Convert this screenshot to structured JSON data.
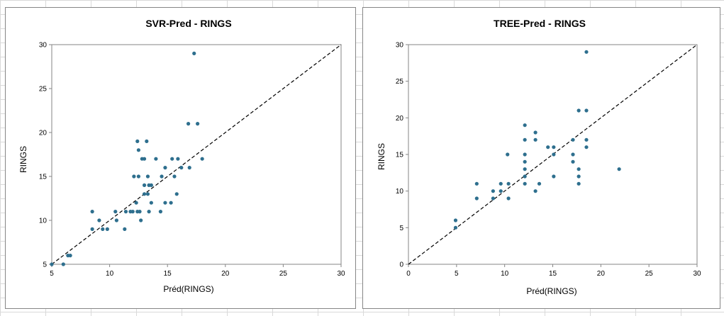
{
  "charts": {
    "svr": {
      "title": "SVR-Pred - RINGS",
      "xlabel": "Préd(RINGS)",
      "ylabel": "RINGS",
      "xticks": [
        "5",
        "10",
        "15",
        "20",
        "25",
        "30"
      ],
      "yticks": [
        "5",
        "10",
        "15",
        "20",
        "25",
        "30"
      ]
    },
    "tree": {
      "title": "TREE-Pred - RINGS",
      "xlabel": "Préd(RINGS)",
      "ylabel": "RINGS",
      "xticks": [
        "0",
        "5",
        "10",
        "15",
        "20",
        "25",
        "30"
      ],
      "yticks": [
        "0",
        "5",
        "10",
        "15",
        "20",
        "25",
        "30"
      ]
    }
  },
  "point_color": "#2e6f8e",
  "chart_data": [
    {
      "type": "scatter",
      "title": "SVR-Pred - RINGS",
      "xlabel": "Préd(RINGS)",
      "ylabel": "RINGS",
      "xlim": [
        5,
        30
      ],
      "ylim": [
        5,
        30
      ],
      "grid": false,
      "reference_line": "y = x (dashed)",
      "points": [
        [
          5.0,
          5
        ],
        [
          6.0,
          5
        ],
        [
          6.4,
          6
        ],
        [
          6.6,
          6
        ],
        [
          8.5,
          11
        ],
        [
          8.5,
          9
        ],
        [
          9.1,
          10
        ],
        [
          9.4,
          9
        ],
        [
          9.8,
          9
        ],
        [
          10.5,
          11
        ],
        [
          10.6,
          10
        ],
        [
          11.3,
          9
        ],
        [
          11.4,
          11
        ],
        [
          11.8,
          11
        ],
        [
          12.0,
          11
        ],
        [
          12.1,
          15
        ],
        [
          12.3,
          12
        ],
        [
          12.4,
          19
        ],
        [
          12.4,
          11
        ],
        [
          12.5,
          18
        ],
        [
          12.5,
          15
        ],
        [
          12.6,
          11
        ],
        [
          12.7,
          10
        ],
        [
          12.8,
          17
        ],
        [
          13.0,
          17
        ],
        [
          13.0,
          14
        ],
        [
          13.0,
          13
        ],
        [
          13.2,
          19
        ],
        [
          13.3,
          15
        ],
        [
          13.3,
          13
        ],
        [
          13.4,
          14
        ],
        [
          13.4,
          11
        ],
        [
          13.6,
          14
        ],
        [
          13.6,
          12
        ],
        [
          14.0,
          17
        ],
        [
          14.4,
          11
        ],
        [
          14.5,
          15
        ],
        [
          14.8,
          16
        ],
        [
          14.8,
          12
        ],
        [
          15.3,
          12
        ],
        [
          15.4,
          17
        ],
        [
          15.6,
          15
        ],
        [
          15.8,
          13
        ],
        [
          15.9,
          17
        ],
        [
          16.2,
          16
        ],
        [
          16.8,
          21
        ],
        [
          16.9,
          16
        ],
        [
          17.3,
          29
        ],
        [
          17.6,
          21
        ],
        [
          18.0,
          17
        ]
      ]
    },
    {
      "type": "scatter",
      "title": "TREE-Pred - RINGS",
      "xlabel": "Préd(RINGS)",
      "ylabel": "RINGS",
      "xlim": [
        0,
        30
      ],
      "ylim": [
        0,
        30
      ],
      "grid": false,
      "reference_line": "y = x (dashed)",
      "points": [
        [
          4.9,
          6
        ],
        [
          4.9,
          5
        ],
        [
          7.1,
          11
        ],
        [
          7.1,
          9
        ],
        [
          8.8,
          10
        ],
        [
          8.8,
          9
        ],
        [
          9.6,
          11
        ],
        [
          9.6,
          10
        ],
        [
          10.3,
          15
        ],
        [
          10.4,
          11
        ],
        [
          10.4,
          9
        ],
        [
          12.1,
          19
        ],
        [
          12.1,
          17
        ],
        [
          12.1,
          15
        ],
        [
          12.1,
          14
        ],
        [
          12.1,
          13
        ],
        [
          12.1,
          12
        ],
        [
          12.1,
          11
        ],
        [
          13.2,
          18
        ],
        [
          13.2,
          17
        ],
        [
          13.2,
          10
        ],
        [
          13.6,
          11
        ],
        [
          14.5,
          16
        ],
        [
          15.1,
          16
        ],
        [
          15.1,
          15
        ],
        [
          15.1,
          12
        ],
        [
          17.1,
          17
        ],
        [
          17.1,
          15
        ],
        [
          17.1,
          14
        ],
        [
          17.7,
          21
        ],
        [
          17.7,
          13
        ],
        [
          17.7,
          12
        ],
        [
          17.7,
          11
        ],
        [
          18.5,
          29
        ],
        [
          18.5,
          21
        ],
        [
          18.5,
          17
        ],
        [
          18.5,
          16
        ],
        [
          21.9,
          13
        ]
      ]
    }
  ]
}
